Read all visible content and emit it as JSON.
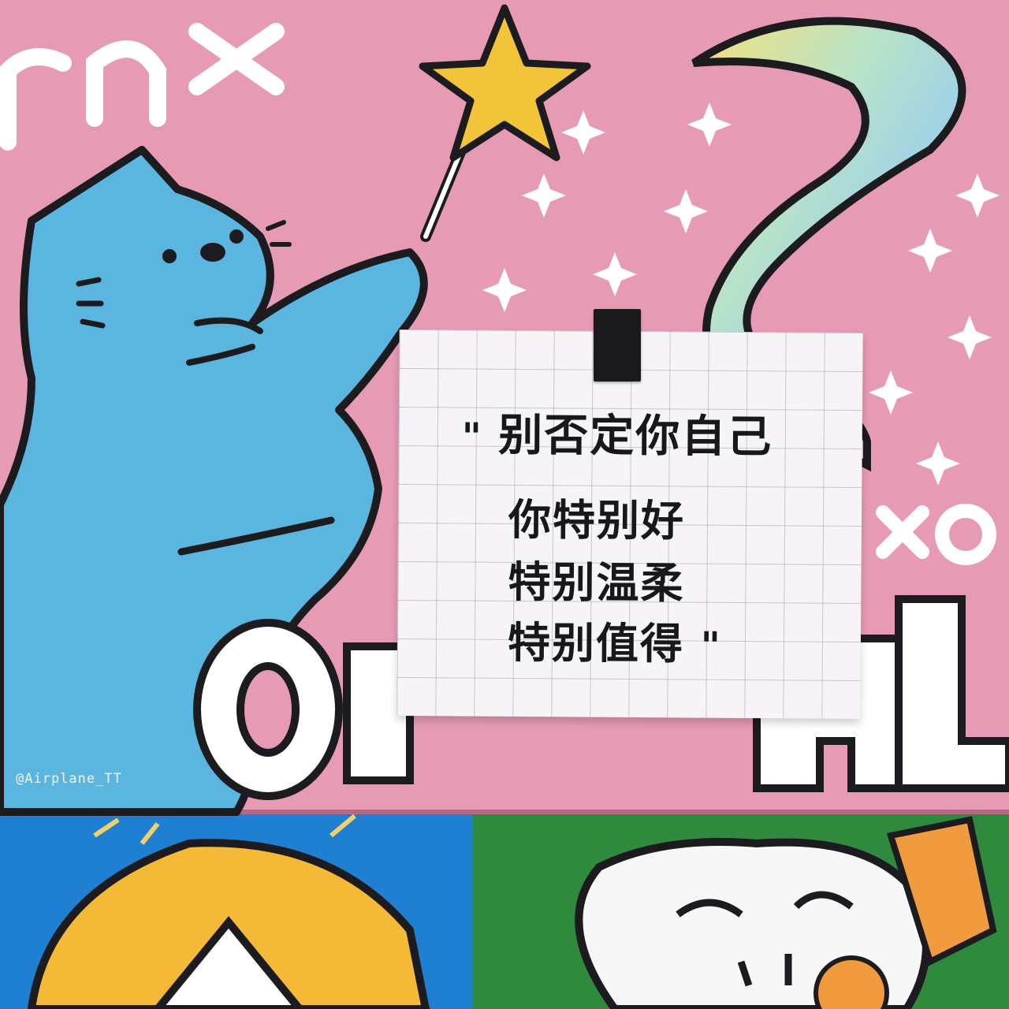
{
  "scene": {
    "description_colors": {
      "pink_card": "#e69ab4",
      "cat_blue": "#5ab6df",
      "outline": "#1c1b1f",
      "star_yellow": "#f2c43a",
      "blue_card": "#1f7fd0",
      "green_card": "#2f8a3d",
      "hair_yellow": "#f4b936"
    },
    "icons": [
      "cat-illustration",
      "star-wand-icon",
      "sparkle-icon",
      "rainbow-creature"
    ]
  },
  "sticky_note": {
    "open_quote": "\"",
    "line1": "别否定你自己",
    "line2": "你特别好",
    "line3": "特别温柔",
    "line4": "特别值得",
    "close_quote": "\""
  },
  "background_text": {
    "top_left": "rnx",
    "right_mid": "xo",
    "big_letters": "OUCHL"
  },
  "watermark": "@Airplane_TT"
}
